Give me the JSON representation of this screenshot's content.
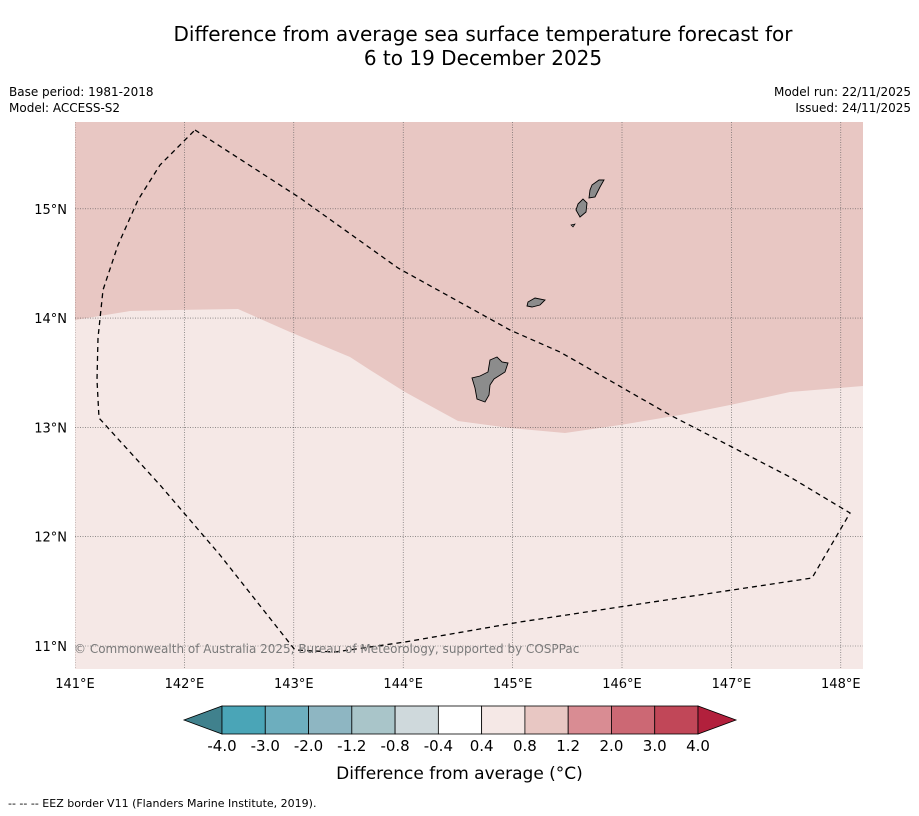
{
  "title": {
    "line1": "Difference from average sea surface temperature forecast for",
    "line2": "6 to 19 December 2025"
  },
  "meta_left": {
    "base_period": "Base period: 1981-2018",
    "model": "Model: ACCESS-S2"
  },
  "meta_right": {
    "model_run": "Model run: 22/11/2025",
    "issued": "Issued: 24/11/2025"
  },
  "map": {
    "lon_range": [
      141.0,
      148.2
    ],
    "lat_range": [
      10.8,
      15.8
    ],
    "lon_ticks": [
      {
        "value": 141,
        "label": "141°E"
      },
      {
        "value": 142,
        "label": "142°E"
      },
      {
        "value": 143,
        "label": "143°E"
      },
      {
        "value": 144,
        "label": "144°E"
      },
      {
        "value": 145,
        "label": "145°E"
      },
      {
        "value": 146,
        "label": "146°E"
      },
      {
        "value": 147,
        "label": "147°E"
      },
      {
        "value": 148,
        "label": "148°E"
      }
    ],
    "lat_ticks": [
      {
        "value": 11,
        "label": "11°N"
      },
      {
        "value": 12,
        "label": "12°N"
      },
      {
        "value": 13,
        "label": "13°N"
      },
      {
        "value": 14,
        "label": "14°N"
      },
      {
        "value": 15,
        "label": "15°N"
      }
    ],
    "zones": [
      {
        "name": "0.8 to 1.2 °C",
        "color": "#e8c7c3"
      },
      {
        "name": "0.4 to 0.8 °C",
        "color": "#f5e8e6"
      }
    ],
    "copyright": "© Commonwealth of Australia 2025, Bureau of Meteorology, supported by COSPPac"
  },
  "colorbar": {
    "colors": [
      "#40818d",
      "#4aa5b7",
      "#6daebe",
      "#8eb6c2",
      "#a9c5c9",
      "#cfd9dc",
      "#ffffff",
      "#f5e8e6",
      "#e8c7c3",
      "#d98c93",
      "#cc6874",
      "#c14758",
      "#b2203c"
    ],
    "ticks": [
      "-4.0",
      "-3.0",
      "-2.0",
      "-1.2",
      "-0.8",
      "-0.4",
      "0.4",
      "0.8",
      "1.2",
      "2.0",
      "3.0",
      "4.0"
    ],
    "title": "Difference from average (°C)"
  },
  "footer": "--  --  -- EEZ border V11 (Flanders Marine Institute, 2019)."
}
